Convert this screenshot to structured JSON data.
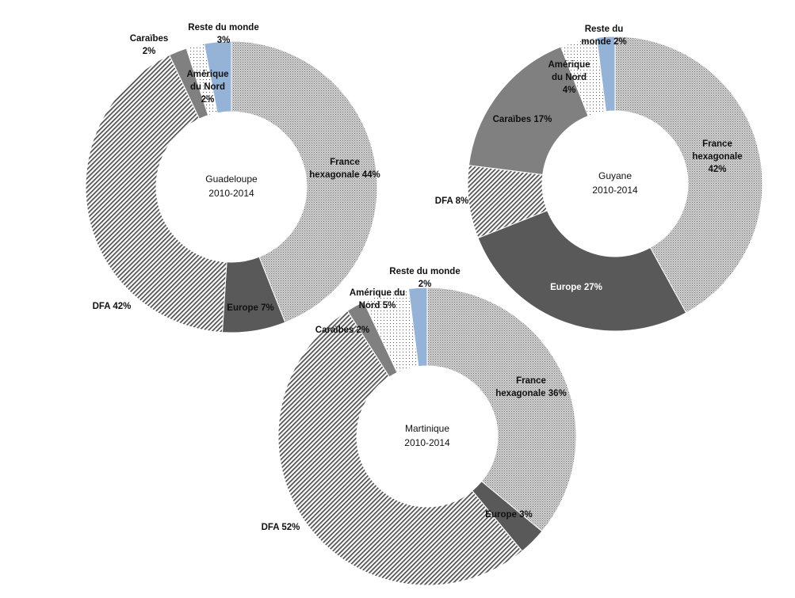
{
  "chart_data": [
    {
      "type": "donut",
      "title": "Guadeloupe",
      "subtitle": "2010-2014",
      "categories": [
        "France hexagonale",
        "Europe",
        "DFA",
        "Caraïbes",
        "Amérique du Nord",
        "Reste du monde"
      ],
      "values": [
        44,
        7,
        42,
        2,
        2,
        3
      ],
      "labels": [
        "France hexagonale 44%",
        "Europe 7%",
        "DFA 42%",
        "Caraïbes 2%",
        "Amérique du Nord 2%",
        "Reste du monde 3%"
      ]
    },
    {
      "type": "donut",
      "title": "Guyane",
      "subtitle": "2010-2014",
      "categories": [
        "France hexagonale",
        "Europe",
        "DFA",
        "Caraïbes",
        "Amérique du Nord",
        "Reste du monde"
      ],
      "values": [
        42,
        27,
        8,
        17,
        4,
        2
      ],
      "labels": [
        "France hexagonale 42%",
        "Europe 27%",
        "DFA 8%",
        "Caraïbes 17%",
        "Amérique du Nord 4%",
        "Reste du monde 2%"
      ]
    },
    {
      "type": "donut",
      "title": "Martinique",
      "subtitle": "2010-2014",
      "categories": [
        "France hexagonale",
        "Europe",
        "DFA",
        "Caraïbes",
        "Amérique du Nord",
        "Reste du monde"
      ],
      "values": [
        36,
        3,
        52,
        2,
        5,
        2
      ],
      "labels": [
        "France hexagonale 36%",
        "Europe 3%",
        "DFA 52%",
        "Caraïbes 2%",
        "Amérique du Nord 5%",
        "Reste du monde 2%"
      ]
    }
  ],
  "colors": {
    "France hexagonale": "#b0b0b0",
    "Europe": "#595959",
    "DFA": "#6a6a6a",
    "Caraïbes": "#7f7f7f",
    "Amérique du Nord": "#9a9a9a",
    "Reste du monde": "#95b3d7"
  }
}
